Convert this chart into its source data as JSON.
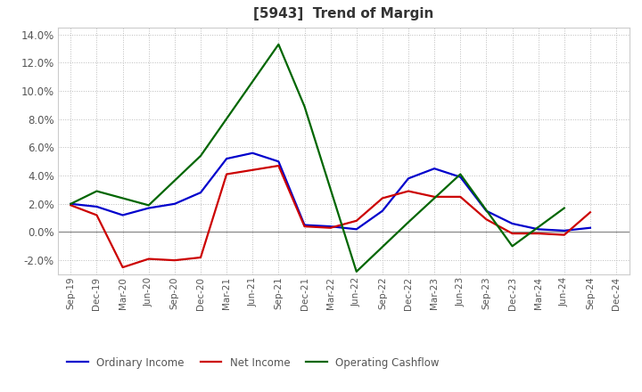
{
  "title": "[5943]  Trend of Margin",
  "x_labels": [
    "Sep-19",
    "Dec-19",
    "Mar-20",
    "Jun-20",
    "Sep-20",
    "Dec-20",
    "Mar-21",
    "Jun-21",
    "Sep-21",
    "Dec-21",
    "Mar-22",
    "Jun-22",
    "Sep-22",
    "Dec-22",
    "Mar-23",
    "Jun-23",
    "Sep-23",
    "Dec-23",
    "Mar-24",
    "Jun-24",
    "Sep-24",
    "Dec-24"
  ],
  "ordinary_income": [
    2.0,
    1.8,
    1.2,
    1.7,
    2.0,
    2.8,
    5.2,
    5.6,
    5.0,
    0.5,
    0.4,
    0.2,
    1.5,
    3.8,
    4.5,
    3.9,
    1.5,
    0.6,
    0.2,
    0.1,
    0.3,
    null
  ],
  "net_income": [
    1.9,
    1.2,
    -2.5,
    -1.9,
    -2.0,
    -1.8,
    4.1,
    4.4,
    4.7,
    0.4,
    0.3,
    0.8,
    2.4,
    2.9,
    2.5,
    2.5,
    0.9,
    -0.1,
    -0.1,
    -0.2,
    1.4,
    null
  ],
  "operating_cashflow": [
    2.0,
    2.9,
    null,
    1.9,
    null,
    5.4,
    null,
    null,
    13.3,
    8.9,
    null,
    -2.8,
    null,
    0.7,
    null,
    4.1,
    null,
    -1.0,
    null,
    1.7,
    null,
    null
  ],
  "ylim_min": -3.0,
  "ylim_max": 14.5,
  "yticks": [
    -2.0,
    0.0,
    2.0,
    4.0,
    6.0,
    8.0,
    10.0,
    12.0,
    14.0
  ],
  "colors": {
    "ordinary_income": "#0000cc",
    "net_income": "#cc0000",
    "operating_cashflow": "#006600"
  },
  "background_color": "#ffffff",
  "grid_color": "#bbbbbb",
  "title_color": "#333333",
  "title_fontsize": 11,
  "tick_label_color": "#555555",
  "tick_fontsize": 7.5,
  "ytick_fontsize": 8.5,
  "line_width": 1.6,
  "legend_labels": [
    "Ordinary Income",
    "Net Income",
    "Operating Cashflow"
  ],
  "legend_fontsize": 8.5
}
